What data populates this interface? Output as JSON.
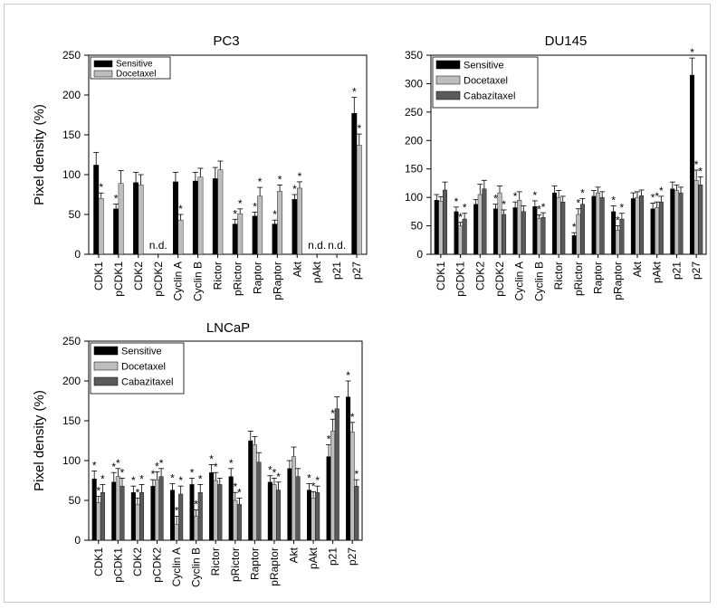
{
  "chart_data": [
    {
      "type": "bar",
      "title": "PC3",
      "ylabel": "Pixel density (%)",
      "ylim": [
        0,
        250
      ],
      "yticks": [
        0,
        50,
        100,
        150,
        200,
        250
      ],
      "categories": [
        "CDK1",
        "pCDK1",
        "CDK2",
        "pCDK2",
        "Cyclin A",
        "Cyclin B",
        "Rictor",
        "pRictor",
        "Raptor",
        "pRaptor",
        "Akt",
        "pAkt",
        "p21",
        "p27"
      ],
      "series": [
        {
          "name": "Sensitive",
          "color": "#000000",
          "values": [
            112,
            57,
            90,
            null,
            91,
            92,
            95,
            38,
            48,
            38,
            69,
            null,
            null,
            177
          ],
          "errors": [
            16,
            6,
            13,
            null,
            12,
            11,
            14,
            6,
            5,
            5,
            6,
            null,
            null,
            20
          ],
          "stars": [
            false,
            true,
            false,
            false,
            false,
            false,
            false,
            true,
            true,
            true,
            true,
            false,
            false,
            true
          ]
        },
        {
          "name": "Docetaxel",
          "color": "#bdbdbd",
          "values": [
            70,
            89,
            87,
            null,
            43,
            97,
            106,
            51,
            73,
            79,
            83,
            null,
            null,
            137
          ],
          "errors": [
            7,
            16,
            13,
            null,
            7,
            11,
            11,
            6,
            11,
            8,
            8,
            null,
            null,
            14
          ],
          "stars": [
            true,
            false,
            false,
            false,
            true,
            false,
            false,
            true,
            true,
            true,
            true,
            false,
            false,
            true
          ]
        }
      ],
      "annotations": [
        "n.d.",
        "n.d.",
        "n.d.",
        "n.d."
      ],
      "legend": "top-left"
    },
    {
      "type": "bar",
      "title": "DU145",
      "ylabel": "",
      "ylim": [
        0,
        350
      ],
      "yticks": [
        0,
        50,
        100,
        150,
        200,
        250,
        300,
        350
      ],
      "categories": [
        "CDK1",
        "pCDK1",
        "CDK2",
        "pCDK2",
        "Cyclin A",
        "Cyclin B",
        "Rictor",
        "pRictor",
        "Raptor",
        "pRaptor",
        "Akt",
        "pAkt",
        "p21",
        "p27"
      ],
      "series": [
        {
          "name": "Sensitive",
          "color": "#000000",
          "values": [
            95,
            75,
            88,
            80,
            82,
            84,
            108,
            33,
            102,
            75,
            98,
            80,
            115,
            315
          ],
          "errors": [
            10,
            8,
            8,
            8,
            10,
            10,
            12,
            5,
            10,
            10,
            10,
            10,
            12,
            30
          ],
          "stars": [
            false,
            true,
            false,
            true,
            true,
            true,
            false,
            true,
            false,
            true,
            false,
            true,
            false,
            true
          ]
        },
        {
          "name": "Docetaxel",
          "color": "#bdbdbd",
          "values": [
            93,
            50,
            105,
            108,
            95,
            63,
            100,
            70,
            108,
            42,
            100,
            82,
            112,
            130
          ],
          "errors": [
            8,
            6,
            18,
            12,
            15,
            6,
            12,
            10,
            10,
            8,
            10,
            10,
            10,
            18
          ],
          "stars": [
            false,
            true,
            false,
            false,
            false,
            true,
            false,
            true,
            false,
            true,
            false,
            true,
            false,
            true
          ]
        },
        {
          "name": "Cabazitaxel",
          "color": "#5a5a5a",
          "values": [
            113,
            62,
            115,
            70,
            75,
            65,
            92,
            88,
            100,
            62,
            103,
            92,
            108,
            122
          ],
          "errors": [
            14,
            10,
            15,
            8,
            10,
            8,
            10,
            10,
            10,
            10,
            10,
            10,
            10,
            14
          ],
          "stars": [
            false,
            true,
            false,
            true,
            false,
            true,
            false,
            true,
            false,
            true,
            false,
            true,
            false,
            true
          ]
        }
      ],
      "legend": "top-left"
    },
    {
      "type": "bar",
      "title": "LNCaP",
      "ylabel": "Pixel density (%)",
      "ylim": [
        0,
        250
      ],
      "yticks": [
        0,
        50,
        100,
        150,
        200,
        250
      ],
      "categories": [
        "CDK1",
        "pCDK1",
        "CDK2",
        "pCDK2",
        "Cyclin A",
        "Cyclin B",
        "Rictor",
        "pRictor",
        "Raptor",
        "pRaptor",
        "Akt",
        "pAkt",
        "p21",
        "p27"
      ],
      "series": [
        {
          "name": "Sensitive",
          "color": "#000000",
          "values": [
            77,
            73,
            60,
            68,
            63,
            70,
            85,
            80,
            125,
            73,
            90,
            63,
            105,
            180
          ],
          "errors": [
            10,
            12,
            8,
            8,
            8,
            8,
            10,
            10,
            12,
            8,
            10,
            8,
            15,
            20
          ],
          "stars": [
            true,
            true,
            true,
            true,
            true,
            true,
            true,
            true,
            false,
            true,
            false,
            true,
            true,
            true
          ]
        },
        {
          "name": "Docetaxel",
          "color": "#bdbdbd",
          "values": [
            47,
            80,
            45,
            76,
            20,
            30,
            75,
            50,
            120,
            70,
            105,
            53,
            137,
            136
          ],
          "errors": [
            8,
            10,
            8,
            10,
            10,
            8,
            10,
            10,
            10,
            8,
            12,
            8,
            15,
            12
          ],
          "stars": [
            true,
            true,
            true,
            true,
            true,
            true,
            true,
            true,
            false,
            true,
            false,
            true,
            true,
            true
          ]
        },
        {
          "name": "Cabazitaxel",
          "color": "#5a5a5a",
          "values": [
            60,
            68,
            60,
            80,
            58,
            60,
            70,
            45,
            98,
            63,
            80,
            60,
            165,
            68
          ],
          "errors": [
            10,
            10,
            10,
            10,
            10,
            10,
            8,
            8,
            12,
            10,
            10,
            8,
            15,
            8
          ],
          "stars": [
            true,
            true,
            true,
            true,
            true,
            true,
            false,
            true,
            false,
            true,
            false,
            true,
            false,
            true
          ]
        }
      ],
      "legend": "top-left"
    }
  ]
}
